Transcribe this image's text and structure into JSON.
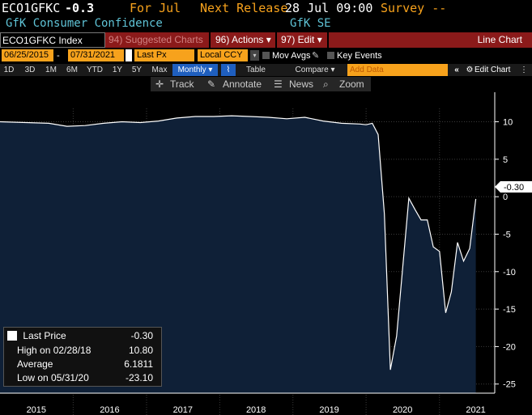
{
  "header": {
    "ticker": "ECO1GFKC",
    "last_change": "-0.3",
    "for_label": "For Jul",
    "next_release_label": "Next Release",
    "next_release_value": "28 Jul 09:00",
    "survey_label": "Survey --",
    "series_title": "GfK Consumer Confidence",
    "source": "GfK SE"
  },
  "menubar": {
    "index_field": "ECO1GFKC Index",
    "suggested": "94) Suggested Charts",
    "actions": "96) Actions ▾",
    "edit": "97) Edit ▾",
    "chart_type": "Line Chart"
  },
  "controls": {
    "start_date": "06/25/2015",
    "end_date": "07/31/2021",
    "field": "Last Px",
    "currency": "Local CCY",
    "mov_avgs": "Mov Avgs",
    "key_events": "Key Events",
    "add_data_placeholder": "Add Data",
    "edit_chart": "Edit Chart"
  },
  "ranges": {
    "items": [
      "1D",
      "3D",
      "1M",
      "6M",
      "YTD",
      "1Y",
      "5Y",
      "Max"
    ],
    "frequency": "Monthly ▾",
    "table": "Table",
    "compare": "Compare ▾"
  },
  "tools": {
    "track": "Track",
    "annotate": "Annotate",
    "news": "News",
    "zoom": "Zoom"
  },
  "legend": {
    "last_label": "Last Price",
    "last_value": "-0.30",
    "high_label": "High on 02/28/18",
    "high_value": "10.80",
    "avg_label": "Average",
    "avg_value": "6.1811",
    "low_label": "Low on 05/31/20",
    "low_value": "-23.10"
  },
  "colors": {
    "accent": "#f7a21c",
    "fill": "#0f2037",
    "line": "#ffffff",
    "menubar": "#8b1a1a"
  },
  "chart_data": {
    "type": "area",
    "x": [
      "2015-06",
      "2015-09",
      "2015-12",
      "2016-03",
      "2016-06",
      "2016-09",
      "2016-12",
      "2017-03",
      "2017-06",
      "2017-09",
      "2017-12",
      "2018-03",
      "2018-06",
      "2018-09",
      "2018-12",
      "2019-03",
      "2019-06",
      "2019-09",
      "2019-12",
      "2020-01",
      "2020-02",
      "2020-03",
      "2020-04",
      "2020-05",
      "2020-06",
      "2020-07",
      "2020-08",
      "2020-09",
      "2020-10",
      "2020-11",
      "2020-12",
      "2021-01",
      "2021-02",
      "2021-03",
      "2021-04",
      "2021-05",
      "2021-06",
      "2021-07"
    ],
    "values": [
      10.0,
      9.8,
      9.4,
      9.5,
      9.8,
      10.0,
      9.9,
      10.1,
      10.5,
      10.7,
      10.7,
      10.8,
      10.7,
      10.6,
      10.4,
      10.6,
      10.1,
      9.8,
      9.7,
      9.6,
      9.8,
      8.3,
      -2.3,
      -23.1,
      -18.6,
      -9.6,
      -0.2,
      -1.7,
      -3.1,
      -3.1,
      -6.7,
      -7.3,
      -15.5,
      -12.7,
      -6.1,
      -8.6,
      -6.9,
      -0.3
    ],
    "last_value": "-0.30",
    "ylim": [
      -26,
      12
    ],
    "y_ticks": [
      "10",
      "5",
      "0",
      "-5",
      "-10",
      "-15",
      "-20",
      "-25"
    ],
    "x_ticks": [
      "2015",
      "2016",
      "2017",
      "2018",
      "2019",
      "2020",
      "2021"
    ],
    "grid": true
  }
}
